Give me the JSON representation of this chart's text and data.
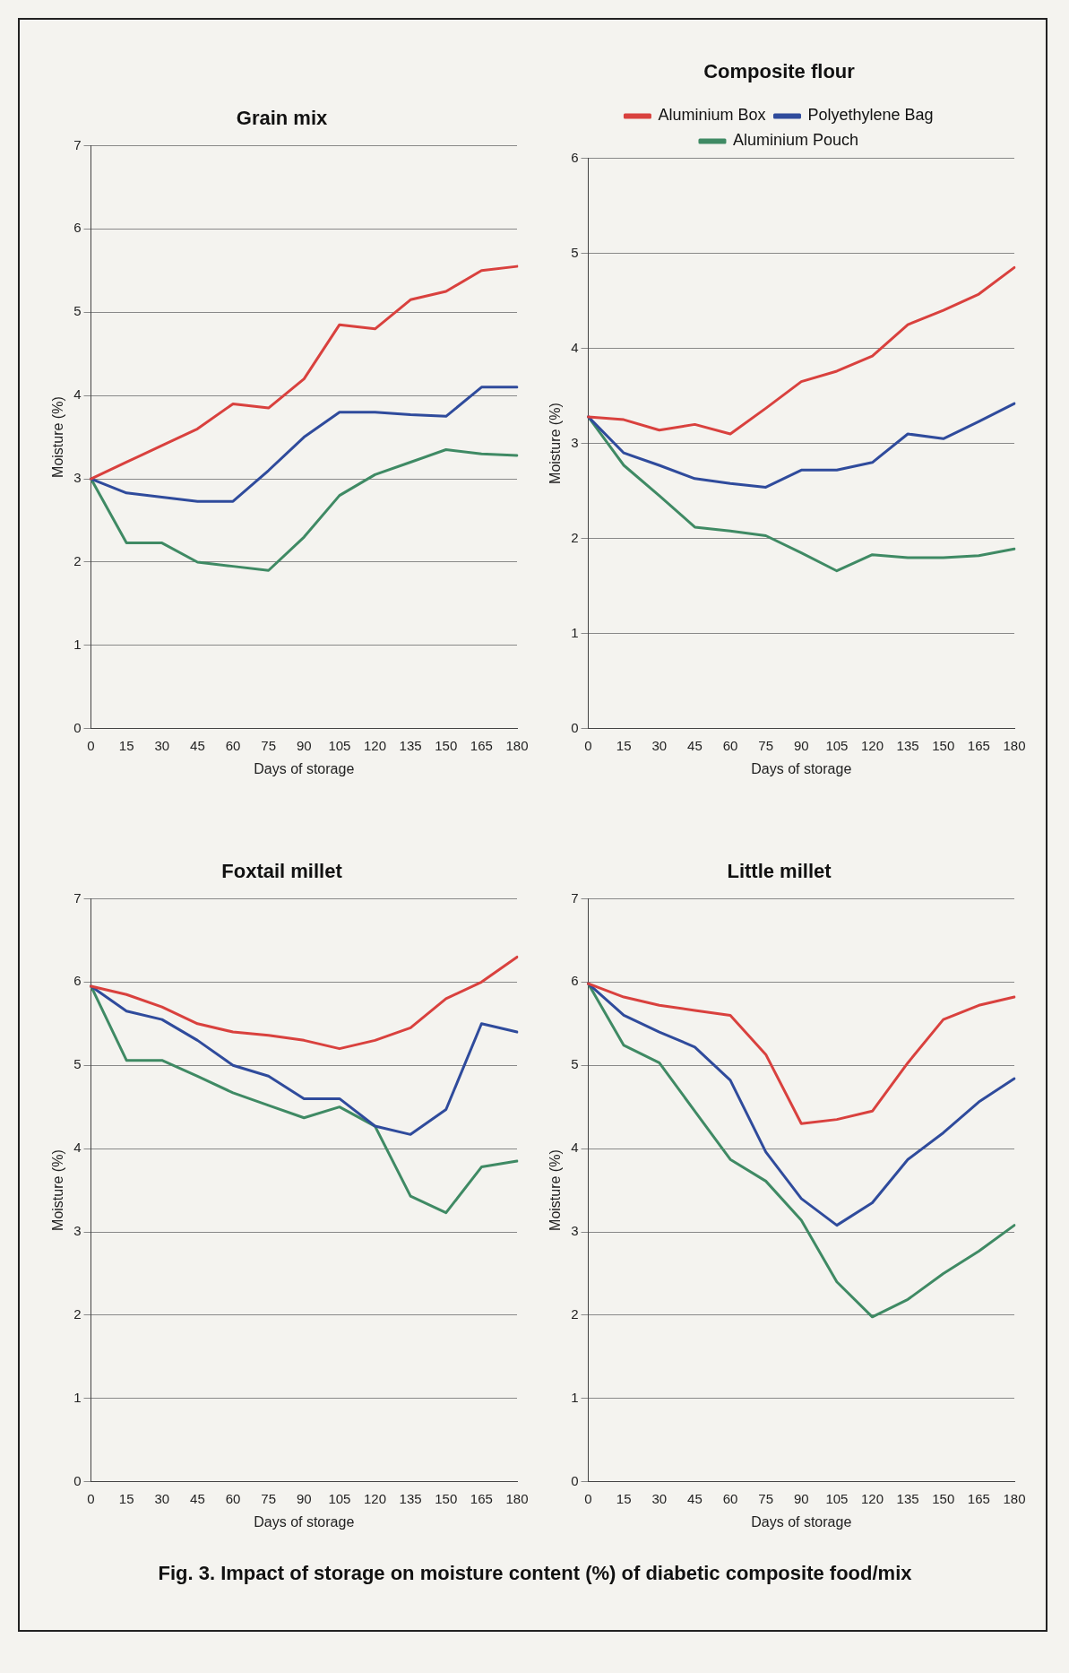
{
  "chart_data": [
    {
      "type": "line",
      "title": "Grain mix",
      "xlabel": "Days of storage",
      "ylabel": "Moisture (%)",
      "categories": [
        "0",
        "15",
        "30",
        "45",
        "60",
        "75",
        "90",
        "105",
        "120",
        "135",
        "150",
        "165",
        "180"
      ],
      "ylim": [
        0,
        7
      ],
      "yticks": [
        0,
        1,
        2,
        3,
        4,
        5,
        6,
        7
      ],
      "grid": "y",
      "legend": false,
      "marker": "none",
      "line_style": "solid",
      "series": [
        {
          "color": "#d9413e",
          "values": [
            3.0,
            3.2,
            3.4,
            3.6,
            3.9,
            3.85,
            4.2,
            4.85,
            4.8,
            5.15,
            5.25,
            5.5,
            5.55
          ]
        },
        {
          "color": "#2f4b9c",
          "values": [
            3.0,
            2.83,
            2.78,
            2.73,
            2.73,
            3.1,
            3.5,
            3.8,
            3.8,
            3.77,
            3.75,
            4.1,
            4.1
          ]
        },
        {
          "color": "#3f8a64",
          "values": [
            3.0,
            2.23,
            2.23,
            2.0,
            1.95,
            1.9,
            2.3,
            2.8,
            3.05,
            3.2,
            3.35,
            3.3,
            3.28
          ]
        }
      ]
    },
    {
      "type": "line",
      "title": "Composite flour",
      "xlabel": "Days of storage",
      "ylabel": "Moisture (%)",
      "categories": [
        "0",
        "15",
        "30",
        "45",
        "60",
        "75",
        "90",
        "105",
        "120",
        "135",
        "150",
        "165",
        "180"
      ],
      "ylim": [
        0,
        6
      ],
      "yticks": [
        0,
        1,
        2,
        3,
        4,
        5,
        6
      ],
      "grid": "y",
      "legend": "top",
      "marker": "none",
      "line_style": "solid",
      "series": [
        {
          "name": "Aluminium Box",
          "color": "#d9413e",
          "values": [
            3.28,
            3.25,
            3.14,
            3.2,
            3.1,
            3.37,
            3.65,
            3.76,
            3.92,
            4.25,
            4.4,
            4.57,
            4.85
          ]
        },
        {
          "name": "Polyethylene Bag",
          "color": "#2f4b9c",
          "values": [
            3.28,
            2.9,
            2.77,
            2.63,
            2.58,
            2.54,
            2.72,
            2.72,
            2.8,
            3.1,
            3.05,
            3.23,
            3.42
          ]
        },
        {
          "name": "Aluminium Pouch",
          "color": "#3f8a64",
          "values": [
            3.28,
            2.77,
            2.45,
            2.12,
            2.08,
            2.03,
            1.85,
            1.66,
            1.83,
            1.8,
            1.8,
            1.82,
            1.89
          ]
        }
      ]
    },
    {
      "type": "line",
      "title": "Foxtail millet",
      "xlabel": "Days of storage",
      "ylabel": "Moisture (%)",
      "categories": [
        "0",
        "15",
        "30",
        "45",
        "60",
        "75",
        "90",
        "105",
        "120",
        "135",
        "150",
        "165",
        "180"
      ],
      "ylim": [
        0,
        7
      ],
      "yticks": [
        0,
        1,
        2,
        3,
        4,
        5,
        6,
        7
      ],
      "grid": "y",
      "legend": false,
      "marker": "none",
      "line_style": "solid",
      "series": [
        {
          "color": "#d9413e",
          "values": [
            5.95,
            5.85,
            5.7,
            5.5,
            5.4,
            5.36,
            5.3,
            5.2,
            5.3,
            5.45,
            5.8,
            6.0,
            6.3
          ]
        },
        {
          "color": "#2f4b9c",
          "values": [
            5.95,
            5.65,
            5.55,
            5.3,
            5.0,
            4.87,
            4.6,
            4.6,
            4.27,
            4.17,
            4.47,
            5.5,
            5.4
          ]
        },
        {
          "color": "#3f8a64",
          "values": [
            5.95,
            5.06,
            5.06,
            4.87,
            4.67,
            4.52,
            4.37,
            4.5,
            4.27,
            3.43,
            3.23,
            3.78,
            3.85
          ]
        }
      ]
    },
    {
      "type": "line",
      "title": "Little millet",
      "xlabel": "Days of storage",
      "ylabel": "Moisture (%)",
      "categories": [
        "0",
        "15",
        "30",
        "45",
        "60",
        "75",
        "90",
        "105",
        "120",
        "135",
        "150",
        "165",
        "180"
      ],
      "ylim": [
        0,
        7
      ],
      "yticks": [
        0,
        1,
        2,
        3,
        4,
        5,
        6,
        7
      ],
      "grid": "y",
      "legend": false,
      "marker": "none",
      "line_style": "solid",
      "annotations": [
        "Fig. 3. Impact of storage on moisture content (%) of diabetic composite food/mix"
      ],
      "series": [
        {
          "color": "#d9413e",
          "values": [
            5.98,
            5.82,
            5.72,
            5.66,
            5.6,
            5.13,
            4.3,
            4.35,
            4.45,
            5.03,
            5.55,
            5.72,
            5.82
          ]
        },
        {
          "color": "#2f4b9c",
          "values": [
            5.98,
            5.6,
            5.4,
            5.22,
            4.82,
            3.96,
            3.4,
            3.08,
            3.35,
            3.87,
            4.19,
            4.56,
            4.84
          ]
        },
        {
          "color": "#3f8a64",
          "values": [
            5.98,
            5.24,
            5.03,
            4.45,
            3.87,
            3.61,
            3.14,
            2.4,
            1.98,
            2.19,
            2.5,
            2.77,
            3.08
          ]
        }
      ]
    }
  ]
}
